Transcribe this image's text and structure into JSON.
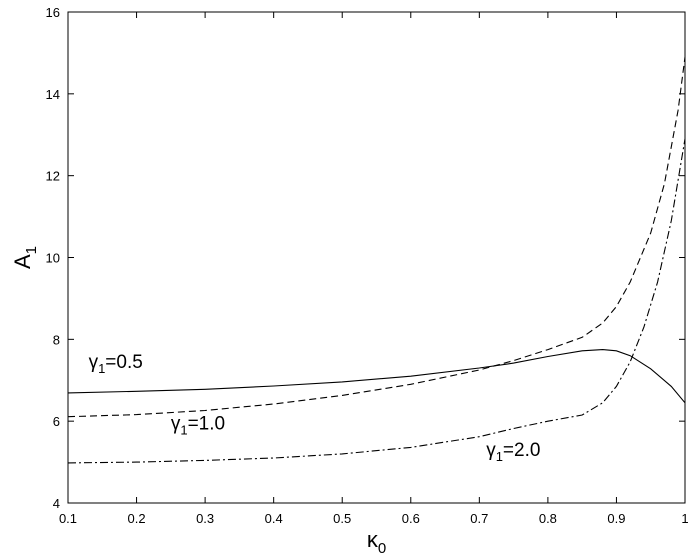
{
  "chart_data": {
    "type": "line",
    "title": "",
    "xlabel": "κ",
    "xlabel_sub": "0",
    "ylabel": "A",
    "ylabel_sub": "1",
    "xlim": [
      0.1,
      1.0
    ],
    "ylim": [
      4,
      16
    ],
    "xticks": [
      0.1,
      0.2,
      0.3,
      0.4,
      0.5,
      0.6,
      0.7,
      0.8,
      0.9,
      1
    ],
    "xtick_labels": [
      "0.1",
      "0.2",
      "0.3",
      "0.4",
      "0.5",
      "0.6",
      "0.7",
      "0.8",
      "0.9",
      "1"
    ],
    "yticks": [
      4,
      6,
      8,
      10,
      12,
      14,
      16
    ],
    "ytick_labels": [
      "4",
      "6",
      "8",
      "10",
      "12",
      "14",
      "16"
    ],
    "grid": false,
    "legend": "none",
    "series": [
      {
        "line_style": "solid",
        "x": [
          0.1,
          0.2,
          0.3,
          0.4,
          0.5,
          0.6,
          0.7,
          0.75,
          0.8,
          0.85,
          0.88,
          0.9,
          0.92,
          0.95,
          0.98,
          1.0
        ],
        "y": [
          6.69,
          6.73,
          6.78,
          6.86,
          6.96,
          7.1,
          7.3,
          7.42,
          7.58,
          7.72,
          7.75,
          7.72,
          7.6,
          7.28,
          6.85,
          6.45
        ]
      },
      {
        "line_style": "dashed",
        "x": [
          0.1,
          0.2,
          0.3,
          0.4,
          0.5,
          0.6,
          0.7,
          0.75,
          0.8,
          0.85,
          0.88,
          0.9,
          0.92,
          0.95,
          0.97,
          0.99,
          1.0
        ],
        "y": [
          6.11,
          6.16,
          6.26,
          6.42,
          6.63,
          6.9,
          7.25,
          7.48,
          7.75,
          8.05,
          8.4,
          8.8,
          9.4,
          10.6,
          11.8,
          13.6,
          14.9
        ]
      },
      {
        "line_style": "dashdot",
        "x": [
          0.1,
          0.2,
          0.3,
          0.4,
          0.5,
          0.6,
          0.7,
          0.75,
          0.8,
          0.85,
          0.88,
          0.9,
          0.92,
          0.94,
          0.96,
          0.98,
          1.0
        ],
        "y": [
          4.98,
          5.0,
          5.04,
          5.1,
          5.2,
          5.36,
          5.62,
          5.82,
          6.0,
          6.15,
          6.45,
          6.85,
          7.45,
          8.3,
          9.4,
          10.9,
          12.9
        ]
      }
    ],
    "annotations": [
      {
        "name": "γ",
        "sub": "1",
        "text": "=0.5",
        "x": 0.13,
        "y": 7.3
      },
      {
        "name": "γ",
        "sub": "1",
        "text": "=1.0",
        "x": 0.25,
        "y": 5.8
      },
      {
        "name": "γ",
        "sub": "1",
        "text": "=2.0",
        "x": 0.71,
        "y": 5.15
      }
    ]
  }
}
